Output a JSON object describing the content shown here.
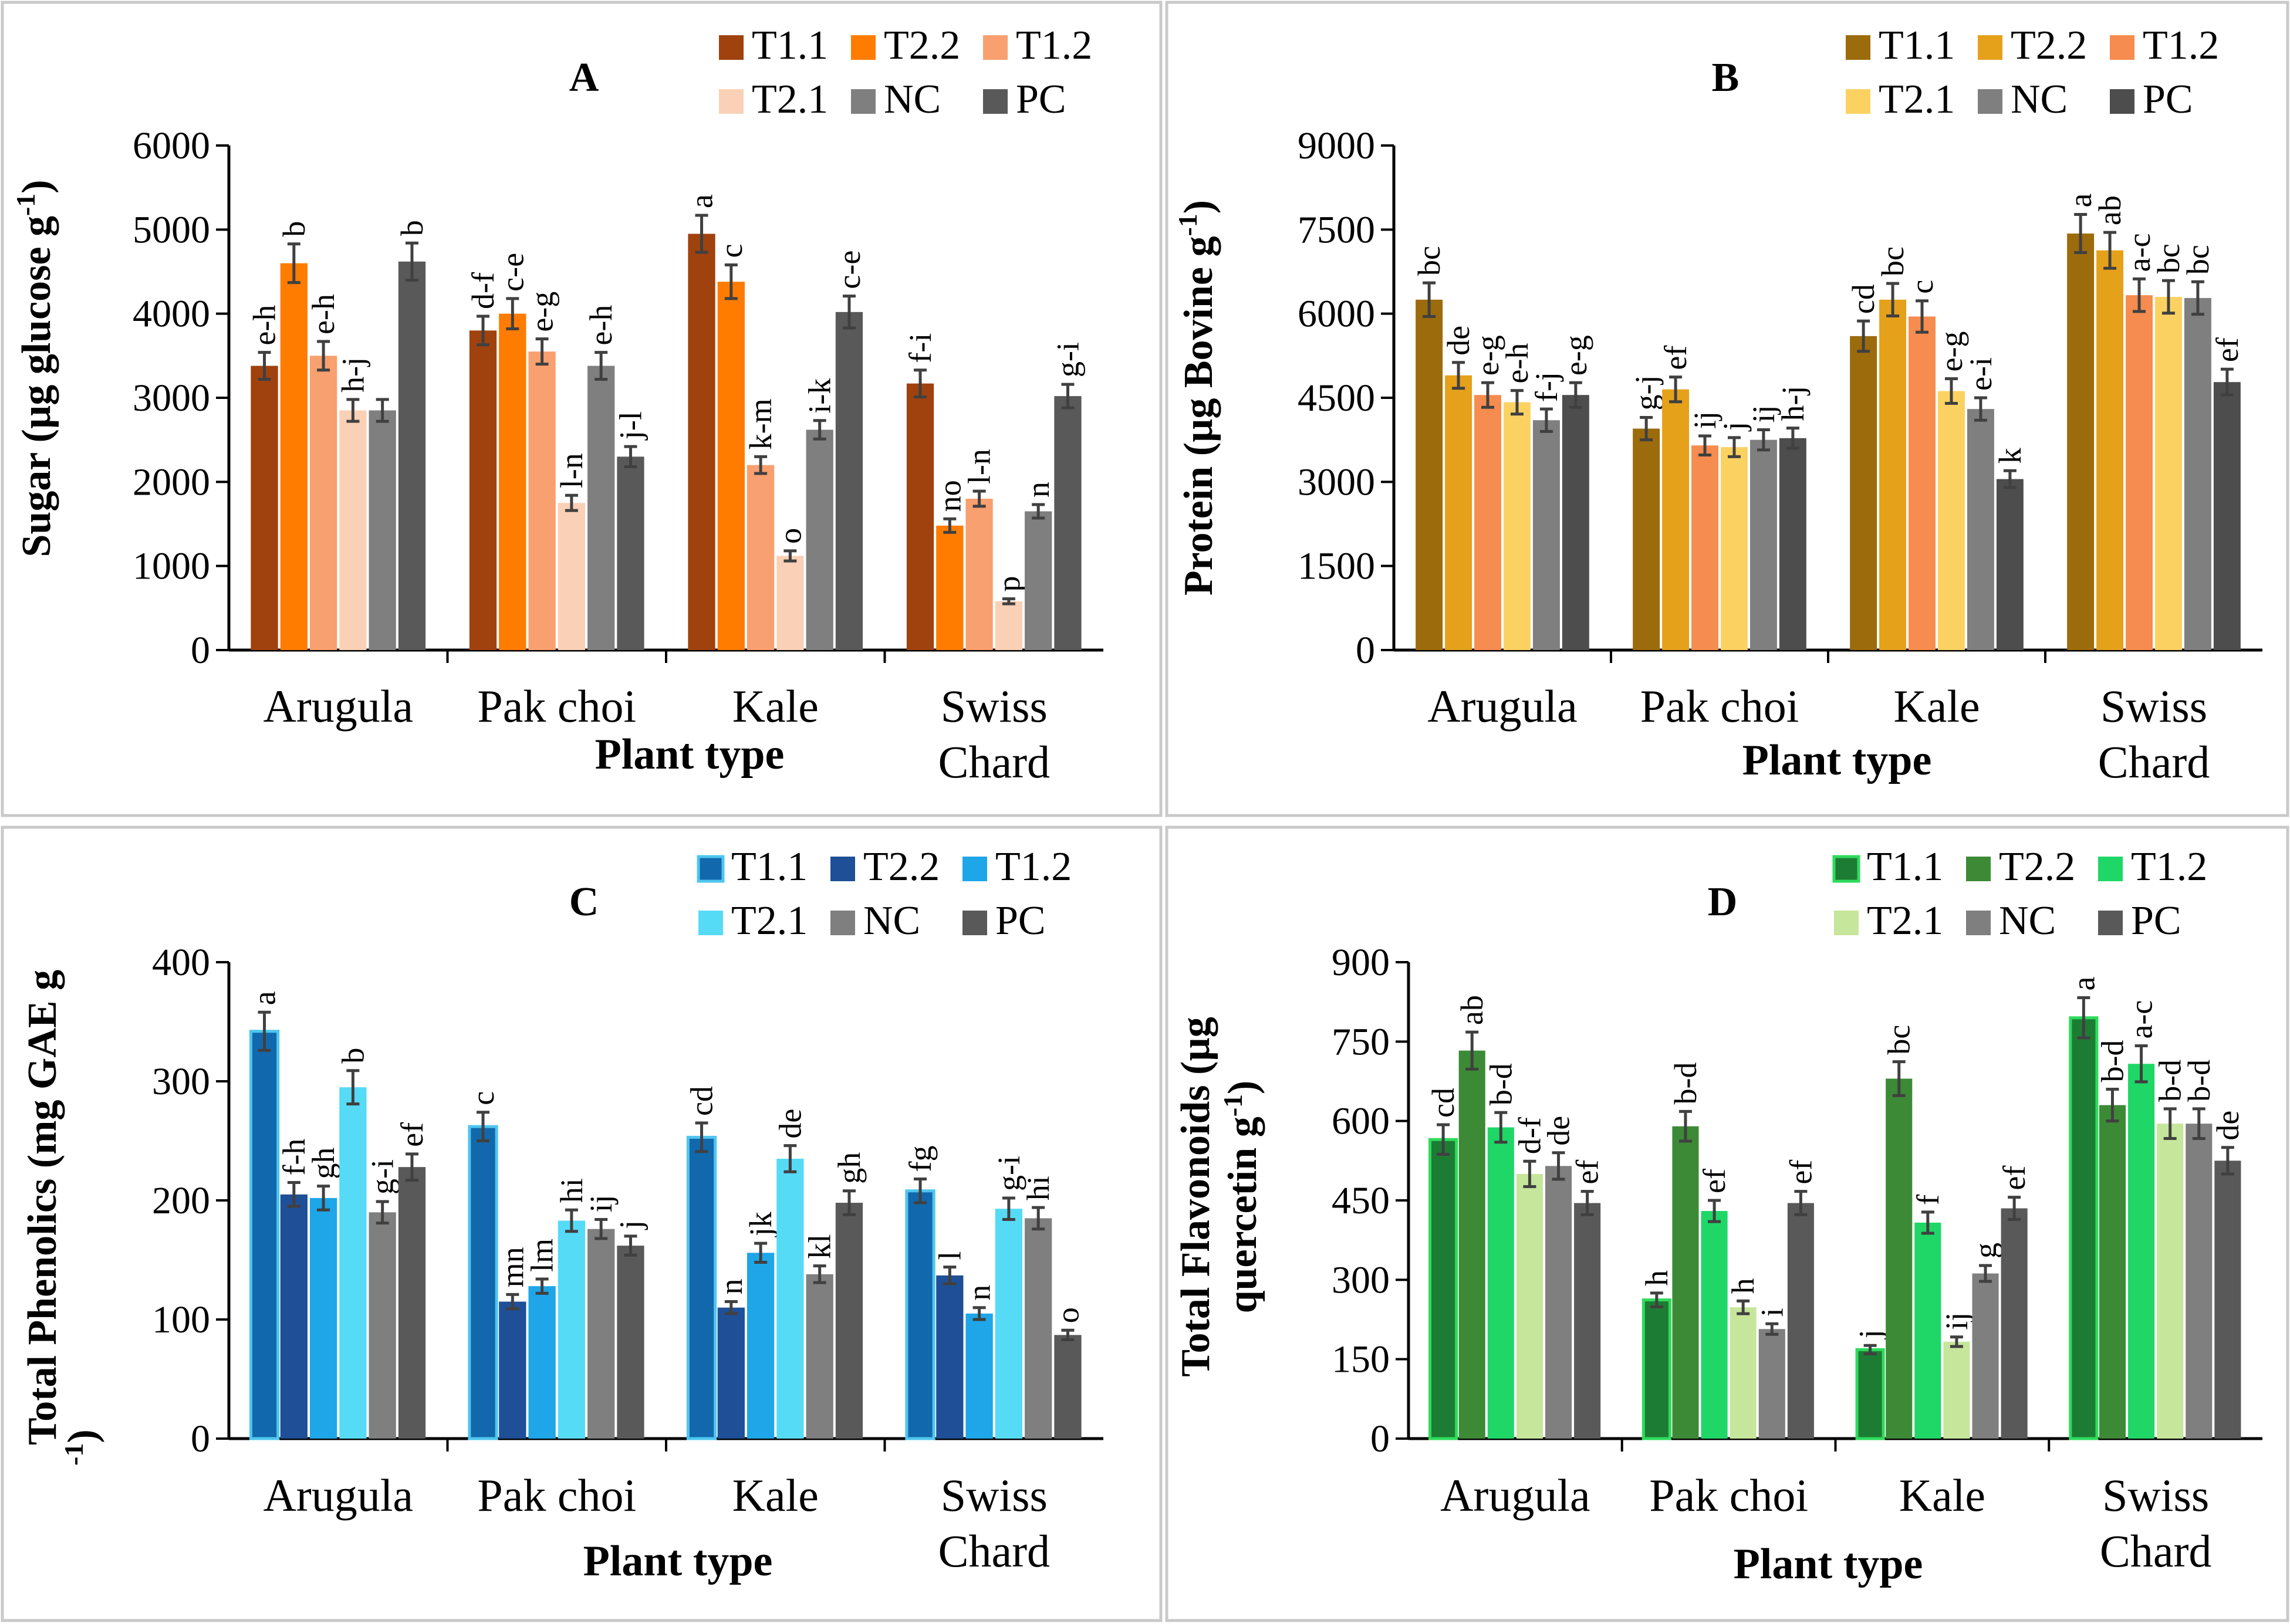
{
  "chart_data": [
    {
      "type": "bar",
      "panel": "A",
      "title": "A",
      "xlabel": "Plant type",
      "ylabel": "Sugar (µg glucose g-1)",
      "ylabel_parts": [
        "Sugar (µg glucose g",
        "-1",
        ")"
      ],
      "ylim": [
        0,
        6000
      ],
      "yticks": [
        0,
        1000,
        2000,
        3000,
        4000,
        5000,
        6000
      ],
      "categories": [
        "Arugula",
        "Pak choi",
        "Kale",
        "Swiss Chard"
      ],
      "category_lines": [
        [
          "Arugula"
        ],
        [
          "Pak choi"
        ],
        [
          "Kale"
        ],
        [
          "Swiss",
          "Chard"
        ]
      ],
      "legend_position": "top-right",
      "series": [
        {
          "name": "T1.1",
          "color": "#a0420e",
          "values": [
            3380,
            3800,
            4950,
            3170
          ],
          "errors": [
            160,
            170,
            220,
            160
          ],
          "labels": [
            "e-h",
            "d-f",
            "a",
            "f-i"
          ]
        },
        {
          "name": "T2.2",
          "color": "#ff7c00",
          "values": [
            4600,
            4000,
            4380,
            1480
          ],
          "errors": [
            230,
            180,
            200,
            80
          ],
          "labels": [
            "b",
            "c-e",
            "c",
            "no"
          ]
        },
        {
          "name": "T1.2",
          "color": "#f8a06f",
          "values": [
            3500,
            3550,
            2200,
            1800
          ],
          "errors": [
            170,
            150,
            100,
            90
          ],
          "labels": [
            "e-h",
            "e-g",
            "k-m",
            "l-n"
          ]
        },
        {
          "name": "T2.1",
          "color": "#fad1b6",
          "values": [
            2850,
            1750,
            1120,
            580
          ],
          "errors": [
            130,
            90,
            60,
            30
          ],
          "labels": [
            "h-j",
            "l-n",
            "o",
            "p"
          ]
        },
        {
          "name": "NC",
          "color": "#7f7f7f",
          "values": [
            2850,
            3380,
            2620,
            1650
          ],
          "errors": [
            130,
            160,
            110,
            80
          ],
          "labels": [
            "",
            "e-h",
            "i-k",
            "n"
          ]
        },
        {
          "name": "PC",
          "color": "#595959",
          "values": [
            4620,
            2300,
            4020,
            3020
          ],
          "errors": [
            220,
            120,
            190,
            140
          ],
          "labels": [
            "b",
            "j-l",
            "c-e",
            "g-i"
          ]
        }
      ]
    },
    {
      "type": "bar",
      "panel": "B",
      "title": "B",
      "xlabel": "Plant type",
      "ylabel": "Protein (µg Bovine g-1)",
      "ylabel_parts": [
        "Protein (µg Bovine g",
        "-1",
        ")"
      ],
      "ylim": [
        0,
        9000
      ],
      "yticks": [
        0,
        1500,
        3000,
        4500,
        6000,
        7500,
        9000
      ],
      "categories": [
        "Arugula",
        "Pak choi",
        "Kale",
        "Swiss Chard"
      ],
      "category_lines": [
        [
          "Arugula"
        ],
        [
          "Pak choi"
        ],
        [
          "Kale"
        ],
        [
          "Swiss",
          "Chard"
        ]
      ],
      "legend_position": "top-right",
      "series": [
        {
          "name": "T1.1",
          "color": "#9c6b0b",
          "values": [
            6250,
            3950,
            5600,
            7430
          ],
          "errors": [
            300,
            200,
            270,
            340
          ],
          "labels": [
            "bc",
            "g-j",
            "cd",
            "a"
          ]
        },
        {
          "name": "T2.2",
          "color": "#e5a11a",
          "values": [
            4900,
            4650,
            6250,
            7130
          ],
          "errors": [
            230,
            220,
            290,
            320
          ],
          "labels": [
            "de",
            "ef",
            "bc",
            "ab"
          ]
        },
        {
          "name": "T1.2",
          "color": "#f68c4f",
          "values": [
            4550,
            3650,
            5950,
            6330
          ],
          "errors": [
            220,
            170,
            280,
            290
          ],
          "labels": [
            "e-g",
            "ij",
            "c",
            "a-c"
          ]
        },
        {
          "name": "T2.1",
          "color": "#fbd262",
          "values": [
            4420,
            3620,
            4620,
            6300
          ],
          "errors": [
            210,
            170,
            220,
            290
          ],
          "labels": [
            "e-h",
            "j",
            "e-g",
            "bc"
          ]
        },
        {
          "name": "NC",
          "color": "#7f7f7f",
          "values": [
            4100,
            3750,
            4300,
            6280
          ],
          "errors": [
            200,
            180,
            200,
            290
          ],
          "labels": [
            "f-j",
            "ij",
            "e-i",
            "bc"
          ]
        },
        {
          "name": "PC",
          "color": "#4d4d4d",
          "values": [
            4550,
            3780,
            3050,
            4780
          ],
          "errors": [
            220,
            180,
            150,
            230
          ],
          "labels": [
            "e-g",
            "h-j",
            "k",
            "ef"
          ]
        }
      ]
    },
    {
      "type": "bar",
      "panel": "C",
      "title": "C",
      "xlabel": "Plant type",
      "ylabel": "Total Phenolics (mg GAE g-1)",
      "ylabel_lines": [
        "Total Phenolics (mg GAE g",
        "-1",
        ")"
      ],
      "ylim": [
        0,
        400
      ],
      "yticks": [
        0,
        100,
        200,
        300,
        400
      ],
      "categories": [
        "Arugula",
        "Pak choi",
        "Kale",
        "Swiss Chard"
      ],
      "category_lines": [
        [
          "Arugula"
        ],
        [
          "Pak choi"
        ],
        [
          "Kale"
        ],
        [
          "Swiss",
          "Chard"
        ]
      ],
      "legend_position": "top-right",
      "series": [
        {
          "name": "T1.1",
          "color": "#1268ad",
          "border": "#4fc6ee",
          "values": [
            342,
            262,
            253,
            208
          ],
          "errors": [
            16,
            12,
            12,
            10
          ],
          "labels": [
            "a",
            "c",
            "cd",
            "fg"
          ]
        },
        {
          "name": "T2.2",
          "color": "#1f4f96",
          "values": [
            205,
            115,
            110,
            137
          ],
          "errors": [
            10,
            6,
            5,
            7
          ],
          "labels": [
            "f-h",
            "mn",
            "n",
            "l"
          ]
        },
        {
          "name": "T1.2",
          "color": "#1ea6e8",
          "values": [
            202,
            128,
            156,
            105
          ],
          "errors": [
            10,
            6,
            8,
            5
          ],
          "labels": [
            "gh",
            "lm",
            "jk",
            "n"
          ]
        },
        {
          "name": "T2.1",
          "color": "#56dbf7",
          "values": [
            295,
            183,
            235,
            193
          ],
          "errors": [
            14,
            9,
            11,
            9
          ],
          "labels": [
            "b",
            "hi",
            "de",
            "g-i"
          ]
        },
        {
          "name": "NC",
          "color": "#7f7f7f",
          "values": [
            190,
            176,
            138,
            185
          ],
          "errors": [
            9,
            8,
            7,
            9
          ],
          "labels": [
            "g-i",
            "ij",
            "kl",
            "hi"
          ]
        },
        {
          "name": "PC",
          "color": "#595959",
          "values": [
            228,
            162,
            198,
            87
          ],
          "errors": [
            11,
            8,
            10,
            4
          ],
          "labels": [
            "ef",
            "j",
            "gh",
            "o"
          ]
        }
      ]
    },
    {
      "type": "bar",
      "panel": "D",
      "title": "D",
      "xlabel": "Plant type",
      "ylabel": "Total Flavonoids (µg quercetin g-1)",
      "ylabel_lines": [
        "Total Flavonoids (µg",
        "quercetin g",
        "-1",
        ")"
      ],
      "ylim": [
        0,
        900
      ],
      "yticks": [
        0,
        150,
        300,
        450,
        600,
        750,
        900
      ],
      "categories": [
        "Arugula",
        "Pak choi",
        "Kale",
        "Swiss Chard"
      ],
      "category_lines": [
        [
          "Arugula"
        ],
        [
          "Pak choi"
        ],
        [
          "Kale"
        ],
        [
          "Swiss",
          "Chard"
        ]
      ],
      "legend_position": "top-right",
      "series": [
        {
          "name": "T1.1",
          "color": "#1d7c33",
          "border": "#2edb5c",
          "values": [
            565,
            262,
            168,
            795
          ],
          "errors": [
            28,
            13,
            8,
            38
          ],
          "labels": [
            "cd",
            "h",
            "j",
            "a"
          ]
        },
        {
          "name": "T2.2",
          "color": "#3c8a36",
          "values": [
            733,
            590,
            680,
            630
          ],
          "errors": [
            35,
            28,
            32,
            30
          ],
          "labels": [
            "ab",
            "b-d",
            "bc",
            "b-d"
          ]
        },
        {
          "name": "T1.2",
          "color": "#1fd767",
          "values": [
            588,
            430,
            408,
            708
          ],
          "errors": [
            28,
            20,
            20,
            34
          ],
          "labels": [
            "b-d",
            "ef",
            "f",
            "a-c"
          ]
        },
        {
          "name": "T2.1",
          "color": "#c6e69b",
          "values": [
            500,
            248,
            183,
            595
          ],
          "errors": [
            24,
            12,
            9,
            28
          ],
          "labels": [
            "d-f",
            "h",
            "ij",
            "b-d"
          ]
        },
        {
          "name": "NC",
          "color": "#7f7f7f",
          "values": [
            515,
            207,
            312,
            595
          ],
          "errors": [
            25,
            10,
            15,
            28
          ],
          "labels": [
            "de",
            "i",
            "g",
            "b-d"
          ]
        },
        {
          "name": "PC",
          "color": "#595959",
          "values": [
            445,
            445,
            435,
            525
          ],
          "errors": [
            22,
            22,
            21,
            25
          ],
          "labels": [
            "ef",
            "ef",
            "ef",
            "de"
          ]
        }
      ]
    }
  ]
}
